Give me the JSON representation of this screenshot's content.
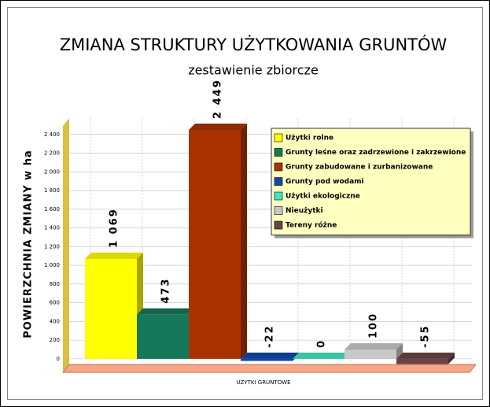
{
  "chart_data": {
    "type": "bar",
    "title": "ZMIANA STRUKTURY UŻYTKOWANIA GRUNTÓW",
    "subtitle": "zestawienie zbiorcze",
    "x_label": "UŻYTKI GRUNTOWE",
    "y_label": "POWIERZCHNIA ZMIANY w ha",
    "series": [
      {
        "name": "Użytki rolne",
        "color": "#ffff00",
        "values": [
          1069
        ],
        "value_labels": [
          "1 069"
        ]
      },
      {
        "name": "Grunty leśne oraz zadrzewione i zakrzewione",
        "color": "#16785a",
        "values": [
          473
        ],
        "value_labels": [
          "473"
        ]
      },
      {
        "name": "Grunty zabudowane i zurbanizowane",
        "color": "#a83300",
        "values": [
          2449
        ],
        "value_labels": [
          "2 449"
        ]
      },
      {
        "name": "Grunty pod wodami",
        "color": "#1448a8",
        "values": [
          -22
        ],
        "value_labels": [
          "-22"
        ]
      },
      {
        "name": "Użytki ekologiczne",
        "color": "#40e8c0",
        "values": [
          0
        ],
        "value_labels": [
          "0"
        ]
      },
      {
        "name": "Nieużytki",
        "color": "#c8c8c8",
        "values": [
          100
        ],
        "value_labels": [
          "100"
        ]
      },
      {
        "name": "Tereny różne",
        "color": "#6a4444",
        "values": [
          -55
        ],
        "value_labels": [
          "-55"
        ]
      }
    ],
    "ylim": [
      -60,
      2575
    ],
    "yticks": [
      0,
      200,
      400,
      600,
      800,
      {
        "value": 1000,
        "label": "1 000"
      },
      {
        "value": 1200,
        "label": "1 200"
      },
      {
        "value": 1400,
        "label": "1 400"
      },
      {
        "value": 1600,
        "label": "1 600"
      },
      {
        "value": 1800,
        "label": "1 800"
      },
      {
        "value": 2000,
        "label": "2 000"
      },
      {
        "value": 2200,
        "label": "2 200"
      },
      {
        "value": 2400,
        "label": "2 400"
      }
    ],
    "grid": true,
    "legend": "top-right"
  }
}
